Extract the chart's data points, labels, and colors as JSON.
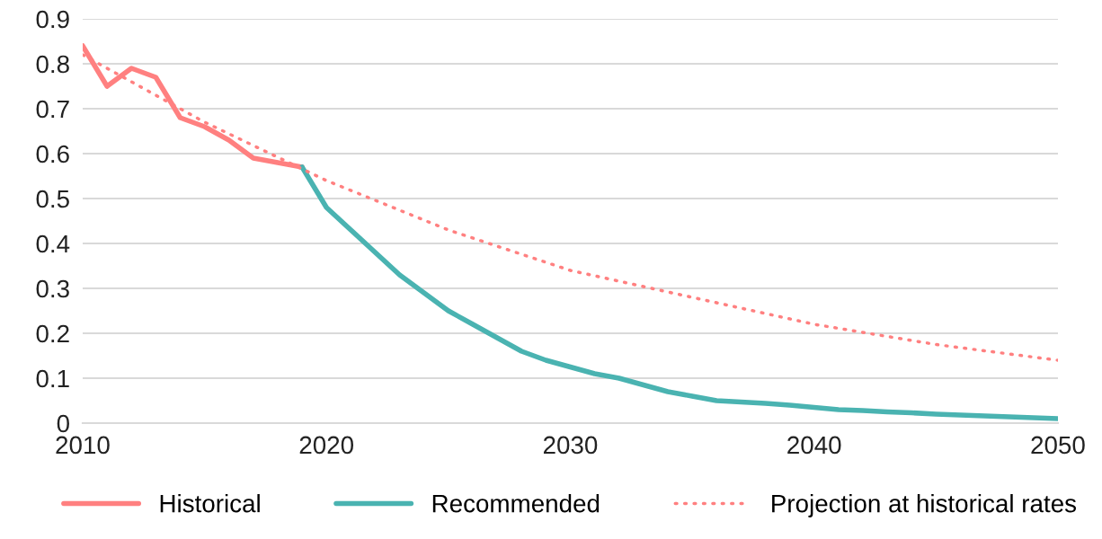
{
  "chart_data": {
    "type": "line",
    "xlim": [
      2010,
      2050
    ],
    "xticks": [
      2010,
      2020,
      2030,
      2040,
      2050
    ],
    "ylim": [
      0,
      0.9
    ],
    "yticks": [
      0,
      0.1,
      0.2,
      0.3,
      0.4,
      0.5,
      0.6,
      0.7,
      0.8,
      0.9
    ],
    "grid": "y",
    "legend": "bottom",
    "series": [
      {
        "name": "Historical",
        "color": "#ff8080",
        "line_style": "solid",
        "x": [
          2010,
          2011,
          2012,
          2013,
          2014,
          2015,
          2016,
          2017,
          2018,
          2019
        ],
        "values": [
          0.84,
          0.75,
          0.79,
          0.77,
          0.68,
          0.66,
          0.63,
          0.59,
          0.58,
          0.57
        ]
      },
      {
        "name": "Recommended",
        "color": "#4ab3b1",
        "line_style": "solid",
        "x": [
          2019,
          2020,
          2021,
          2022,
          2023,
          2024,
          2025,
          2026,
          2027,
          2028,
          2029,
          2030,
          2031,
          2032,
          2033,
          2034,
          2035,
          2036,
          2037,
          2038,
          2039,
          2040,
          2041,
          2042,
          2043,
          2044,
          2045,
          2046,
          2047,
          2048,
          2049,
          2050
        ],
        "values": [
          0.57,
          0.48,
          0.43,
          0.38,
          0.33,
          0.29,
          0.25,
          0.22,
          0.19,
          0.16,
          0.14,
          0.125,
          0.11,
          0.1,
          0.085,
          0.07,
          0.06,
          0.05,
          0.047,
          0.044,
          0.04,
          0.035,
          0.03,
          0.028,
          0.025,
          0.023,
          0.02,
          0.018,
          0.016,
          0.014,
          0.012,
          0.01
        ]
      },
      {
        "name": "Projection at historical rates",
        "color": "#ff8080",
        "line_style": "dotted",
        "x": [
          2010,
          2015,
          2020,
          2025,
          2030,
          2035,
          2040,
          2045,
          2050
        ],
        "values": [
          0.82,
          0.67,
          0.54,
          0.43,
          0.34,
          0.28,
          0.22,
          0.175,
          0.14
        ]
      }
    ]
  }
}
